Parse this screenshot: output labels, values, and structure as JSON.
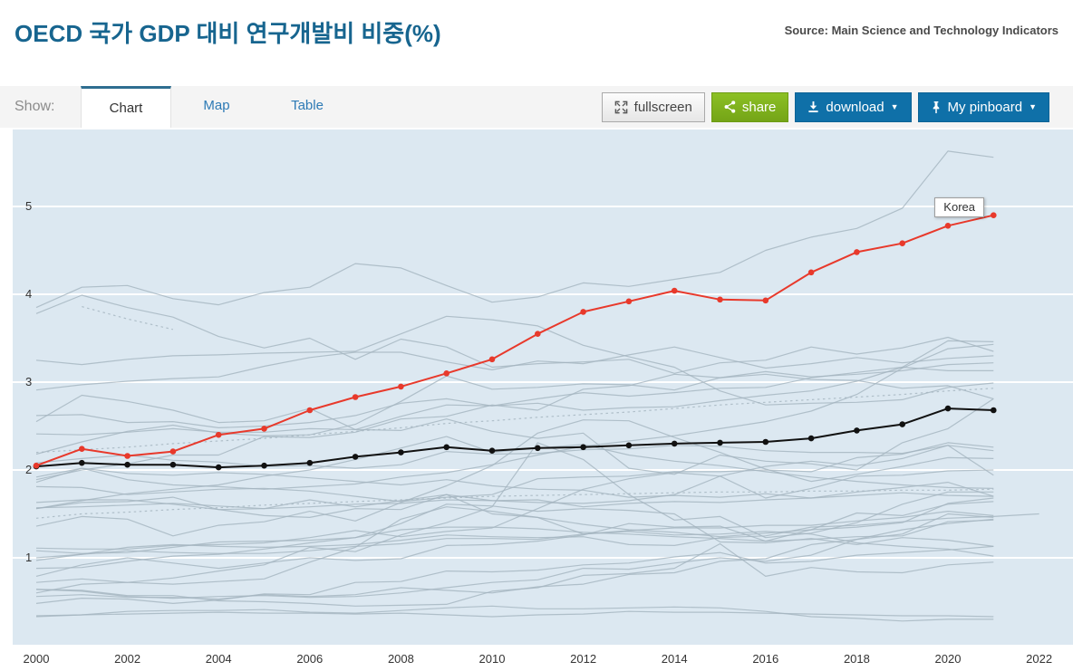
{
  "page": {
    "title": "OECD 국가 GDP 대비 연구개발비 비중(%)",
    "source": "Source: Main Science and Technology Indicators"
  },
  "toolbar": {
    "show_label": "Show:",
    "tabs": [
      {
        "label": "Chart",
        "active": true
      },
      {
        "label": "Map",
        "active": false
      },
      {
        "label": "Table",
        "active": false
      }
    ],
    "buttons": {
      "fullscreen": "fullscreen",
      "share": "share",
      "download": "download",
      "pinboard": "My pinboard",
      "caret": "▼"
    }
  },
  "chart_data": {
    "type": "line",
    "title": "OECD 국가 GDP 대비 연구개발비 비중(%)",
    "x_start": 2000,
    "x_tick_years": [
      2000,
      2002,
      2004,
      2006,
      2008,
      2010,
      2012,
      2014,
      2016,
      2018,
      2020,
      2022
    ],
    "y_ticks": [
      1,
      2,
      3,
      4,
      5
    ],
    "xlim": [
      2000,
      2022.75
    ],
    "ylim": [
      0,
      5.87
    ],
    "grid": "horizontal-white",
    "legend": "none",
    "tooltip_label": "Korea",
    "colors": {
      "plot_bg": "#dce8f1",
      "gridline": "#ffffff",
      "background_line": "#a4b4bf",
      "highlight_line": "#e8392b",
      "emphasis_line": "#111111",
      "tick_text": "#333333"
    },
    "series": [
      {
        "role": "background",
        "values": [
          3.85,
          4.08,
          4.1,
          3.95,
          3.88,
          4.02,
          4.08,
          4.35,
          4.3,
          4.1,
          3.91,
          3.97,
          4.13,
          4.09,
          4.17,
          4.25,
          4.5,
          4.65,
          4.75,
          4.98,
          5.63,
          5.56
        ]
      },
      {
        "role": "background",
        "values": [
          3.78,
          3.99,
          3.85,
          3.74,
          3.52,
          3.39,
          3.5,
          3.26,
          3.49,
          3.4,
          3.17,
          3.21,
          3.23,
          3.26,
          3.1,
          3.22,
          3.25,
          3.4,
          3.32,
          3.39,
          3.51,
          3.35
        ]
      },
      {
        "role": "background",
        "values": [
          3.25,
          3.2,
          3.26,
          3.3,
          3.31,
          3.33,
          3.34,
          3.35,
          3.55,
          3.75,
          3.71,
          3.64,
          3.42,
          3.29,
          3.17,
          2.9,
          2.74,
          2.76,
          2.77,
          2.8,
          2.94,
          2.99
        ]
      },
      {
        "role": "background",
        "values": [
          2.91,
          2.97,
          3.01,
          3.04,
          3.06,
          3.18,
          3.28,
          3.34,
          3.34,
          3.23,
          3.14,
          3.24,
          3.21,
          3.31,
          3.4,
          3.28,
          3.16,
          3.21,
          3.28,
          3.22,
          3.27,
          3.3
        ]
      },
      {
        "role": "background",
        "values": [
          2.62,
          2.63,
          2.54,
          2.55,
          2.48,
          2.5,
          2.54,
          2.62,
          2.76,
          2.81,
          2.73,
          2.76,
          2.68,
          2.71,
          2.72,
          2.79,
          2.85,
          2.9,
          3.01,
          3.17,
          3.47,
          3.46
        ]
      },
      {
        "role": "background",
        "values": [
          2.41,
          2.4,
          2.43,
          2.47,
          2.43,
          2.43,
          2.47,
          2.46,
          2.61,
          2.74,
          2.73,
          2.81,
          2.88,
          2.84,
          2.88,
          2.93,
          2.94,
          3.05,
          3.11,
          3.17,
          3.13,
          3.13
        ]
      },
      {
        "role": "background",
        "values": [
          1.89,
          2.0,
          2.07,
          2.17,
          2.17,
          2.38,
          2.37,
          2.43,
          2.58,
          2.61,
          2.74,
          2.68,
          2.92,
          2.96,
          3.09,
          3.05,
          3.12,
          3.06,
          3.09,
          3.13,
          3.2,
          3.22
        ]
      },
      {
        "role": "background",
        "values": [
          2.18,
          2.32,
          2.44,
          2.51,
          2.42,
          2.39,
          2.4,
          2.52,
          2.78,
          3.07,
          2.92,
          2.94,
          2.98,
          2.97,
          2.91,
          3.05,
          3.09,
          3.03,
          3.02,
          2.93,
          2.96,
          2.81
        ]
      },
      {
        "role": "background",
        "values": [
          2.08,
          2.13,
          2.17,
          2.11,
          2.09,
          2.04,
          2.05,
          2.02,
          2.06,
          2.21,
          2.18,
          2.19,
          2.23,
          2.24,
          2.28,
          2.27,
          2.22,
          2.2,
          2.2,
          2.19,
          2.28,
          2.22
        ]
      },
      {
        "role": "background",
        "values": [
          1.92,
          2.02,
          1.89,
          1.83,
          1.81,
          1.78,
          1.81,
          1.84,
          1.92,
          1.97,
          2.06,
          2.17,
          2.27,
          2.33,
          2.39,
          2.47,
          2.55,
          2.67,
          2.86,
          3.16,
          3.38,
          3.43
        ]
      },
      {
        "role": "background",
        "values": [
          1.81,
          1.8,
          1.72,
          1.75,
          1.78,
          1.79,
          1.76,
          1.7,
          1.64,
          1.69,
          1.72,
          1.9,
          1.92,
          1.93,
          1.98,
          1.98,
          2.0,
          1.98,
          2.14,
          2.18,
          2.31,
          2.26
        ]
      },
      {
        "role": "background",
        "values": [
          1.63,
          1.66,
          1.66,
          1.61,
          1.55,
          1.56,
          1.58,
          1.61,
          1.62,
          1.66,
          1.65,
          1.66,
          1.58,
          1.62,
          1.64,
          1.63,
          1.66,
          1.68,
          1.71,
          1.74,
          1.71,
          1.7
        ]
      },
      {
        "role": "background",
        "values": [
          1.86,
          2.02,
          1.96,
          1.94,
          1.97,
          1.95,
          1.91,
          1.87,
          1.83,
          1.89,
          1.82,
          1.78,
          1.77,
          1.69,
          1.71,
          1.69,
          1.73,
          1.68,
          1.75,
          1.8,
          1.86,
          1.7
        ]
      },
      {
        "role": "background",
        "values": [
          1.56,
          1.63,
          1.64,
          1.69,
          1.55,
          1.48,
          1.46,
          1.56,
          1.55,
          1.72,
          1.65,
          1.63,
          1.62,
          1.65,
          1.72,
          1.93,
          2.04,
          2.1,
          2.05,
          2.13,
          2.28,
          1.94
        ]
      },
      {
        "role": "background",
        "values": [
          2.55,
          2.85,
          2.78,
          2.68,
          2.54,
          2.56,
          2.7,
          2.46,
          2.45,
          2.58,
          2.44,
          2.36,
          2.42,
          2.02,
          1.95,
          2.17,
          2.1,
          2.07,
          2.0,
          2.31,
          2.47,
          2.81
        ]
      },
      {
        "role": "background",
        "values": [
          1.56,
          1.65,
          1.73,
          1.78,
          1.83,
          1.93,
          2.0,
          2.12,
          2.25,
          2.38,
          2.2,
          2.25,
          2.29,
          2.17,
          2.1,
          2.05,
          1.98,
          1.92,
          1.87,
          1.83,
          1.8,
          1.79
        ]
      },
      {
        "role": "background",
        "values": [
          1.08,
          1.05,
          1.06,
          1.12,
          1.18,
          1.19,
          1.2,
          1.23,
          1.39,
          1.61,
          1.59,
          1.53,
          1.56,
          1.54,
          1.5,
          1.18,
          1.17,
          1.22,
          1.15,
          1.23,
          1.2,
          1.13
        ]
      },
      {
        "role": "background",
        "values": [
          0.88,
          0.89,
          0.96,
          1.02,
          1.04,
          1.1,
          1.17,
          1.23,
          1.32,
          1.35,
          1.35,
          1.33,
          1.29,
          1.27,
          1.24,
          1.22,
          1.19,
          1.21,
          1.24,
          1.25,
          1.41,
          1.43
        ]
      },
      {
        "role": "background",
        "values": [
          1.0,
          1.04,
          1.08,
          1.06,
          1.05,
          1.05,
          1.08,
          1.13,
          1.16,
          1.22,
          1.22,
          1.21,
          1.27,
          1.31,
          1.34,
          1.34,
          1.37,
          1.37,
          1.42,
          1.46,
          1.53,
          1.48
        ]
      },
      {
        "role": "background",
        "values": [
          0.72,
          0.76,
          0.72,
          0.7,
          0.73,
          0.76,
          0.95,
          1.12,
          1.44,
          1.58,
          1.53,
          1.46,
          1.38,
          1.32,
          1.29,
          1.24,
          1.28,
          1.32,
          1.35,
          1.4,
          1.62,
          1.68
        ]
      },
      {
        "role": "background",
        "values": [
          1.11,
          1.1,
          1.1,
          1.14,
          1.15,
          1.17,
          1.23,
          1.31,
          1.24,
          1.3,
          1.34,
          1.56,
          1.78,
          1.9,
          1.97,
          1.93,
          1.68,
          1.79,
          1.93,
          1.94,
          1.99,
          2.0
        ]
      },
      {
        "role": "background",
        "values": [
          0.64,
          0.62,
          0.56,
          0.54,
          0.56,
          0.57,
          0.55,
          0.56,
          0.6,
          0.66,
          0.72,
          0.75,
          0.88,
          0.87,
          0.94,
          1.0,
          0.96,
          1.03,
          1.21,
          1.32,
          1.39,
          1.44
        ]
      },
      {
        "role": "background",
        "values": [
          0.79,
          0.92,
          1.0,
          0.94,
          0.88,
          0.94,
          1.0,
          0.97,
          0.99,
          1.14,
          1.15,
          1.19,
          1.26,
          1.39,
          1.35,
          1.36,
          1.19,
          1.32,
          1.51,
          1.48,
          1.61,
          1.64
        ]
      },
      {
        "role": "background",
        "values": [
          0.56,
          0.58,
          0.55,
          0.55,
          0.53,
          0.58,
          0.56,
          0.58,
          0.66,
          0.63,
          0.6,
          0.67,
          0.7,
          0.81,
          0.83,
          0.96,
          0.99,
          1.15,
          1.21,
          1.27,
          1.5,
          1.46
        ]
      },
      {
        "role": "background",
        "values": [
          0.48,
          0.54,
          0.53,
          0.48,
          0.52,
          0.59,
          0.58,
          0.72,
          0.73,
          0.85,
          0.84,
          0.86,
          0.92,
          0.94,
          1.01,
          1.06,
          0.94,
          0.96,
          1.03,
          1.06,
          1.09,
          1.13
        ]
      },
      {
        "role": "background",
        "values": [
          0.34,
          0.35,
          0.39,
          0.4,
          0.4,
          0.41,
          0.38,
          0.37,
          0.4,
          0.43,
          0.45,
          0.42,
          0.42,
          0.43,
          0.44,
          0.43,
          0.39,
          0.33,
          0.31,
          0.28,
          0.3,
          0.3
        ]
      },
      {
        "role": "background",
        "values": [
          0.64,
          0.63,
          0.57,
          0.57,
          0.51,
          0.5,
          0.48,
          0.45,
          0.46,
          0.47,
          0.62,
          0.66,
          0.8,
          0.82,
          0.88,
          1.16,
          0.79,
          0.89,
          0.84,
          0.83,
          0.92,
          0.95
        ]
      },
      {
        "role": "background",
        "values": [
          0.33,
          0.35,
          0.36,
          0.37,
          0.38,
          0.37,
          0.37,
          0.36,
          0.37,
          0.35,
          0.33,
          0.35,
          0.36,
          0.39,
          0.38,
          0.38,
          0.37,
          0.36,
          0.35,
          0.34,
          0.34,
          0.33
        ]
      },
      {
        "role": "background",
        "values": [
          0.97,
          1.04,
          1.12,
          1.15,
          1.13,
          1.12,
          1.13,
          1.15,
          1.2,
          1.26,
          1.24,
          1.23,
          1.24,
          1.15,
          1.14,
          1.23,
          1.25,
          1.35,
          1.37,
          1.41,
          1.45,
          1.47,
          1.5
        ]
      },
      {
        "role": "background",
        "values": [
          1.36,
          1.47,
          1.44,
          1.25,
          1.37,
          1.41,
          1.53,
          1.42,
          1.63,
          1.82,
          2.05,
          2.42,
          2.57,
          2.56,
          2.37,
          2.2,
          2.01,
          1.87,
          1.95,
          2.04,
          2.14,
          2.13
        ]
      },
      {
        "role": "background",
        "values": [
          1.57,
          1.58,
          1.6,
          1.62,
          1.59,
          1.56,
          1.66,
          1.58,
          1.65,
          1.72,
          1.5,
          1.46,
          1.27,
          1.3,
          1.26,
          1.27,
          1.3,
          1.27,
          1.17,
          1.13,
          1.1,
          1.02
        ]
      },
      {
        "role": "background",
        "values": [
          0.6,
          0.7,
          0.72,
          0.77,
          0.85,
          0.92,
          1.12,
          1.07,
          1.26,
          1.4,
          1.58,
          2.31,
          2.12,
          1.72,
          1.43,
          1.47,
          1.23,
          1.28,
          1.4,
          1.61,
          1.75,
          1.75
        ]
      },
      {
        "role": "background",
        "dash": true,
        "start_year": 2001,
        "values": [
          3.86,
          3.72,
          3.6
        ]
      },
      {
        "role": "background",
        "dash": true,
        "values": [
          2.2,
          2.23,
          2.26,
          2.3,
          2.33,
          2.36,
          2.4,
          2.44,
          2.48,
          2.53,
          2.56,
          2.6,
          2.63,
          2.66,
          2.7,
          2.74,
          2.77,
          2.8,
          2.83,
          2.86,
          2.9,
          2.93
        ]
      },
      {
        "role": "background",
        "dash": true,
        "values": [
          1.45,
          1.5,
          1.52,
          1.55,
          1.57,
          1.6,
          1.62,
          1.64,
          1.66,
          1.68,
          1.7,
          1.71,
          1.72,
          1.73,
          1.74,
          1.75,
          1.75,
          1.76,
          1.76,
          1.77,
          1.77,
          1.78
        ]
      },
      {
        "role": "emphasis",
        "color": "#111111",
        "markers": true,
        "values": [
          2.04,
          2.08,
          2.06,
          2.06,
          2.03,
          2.05,
          2.08,
          2.15,
          2.2,
          2.26,
          2.22,
          2.25,
          2.26,
          2.28,
          2.3,
          2.31,
          2.32,
          2.36,
          2.45,
          2.52,
          2.7,
          2.68
        ]
      },
      {
        "role": "highlight",
        "name": "Korea",
        "color": "#e8392b",
        "markers": true,
        "values": [
          2.05,
          2.24,
          2.16,
          2.21,
          2.4,
          2.47,
          2.68,
          2.83,
          2.95,
          3.1,
          3.26,
          3.55,
          3.8,
          3.92,
          4.04,
          3.94,
          3.93,
          4.25,
          4.48,
          4.58,
          4.78,
          4.9
        ]
      }
    ]
  }
}
